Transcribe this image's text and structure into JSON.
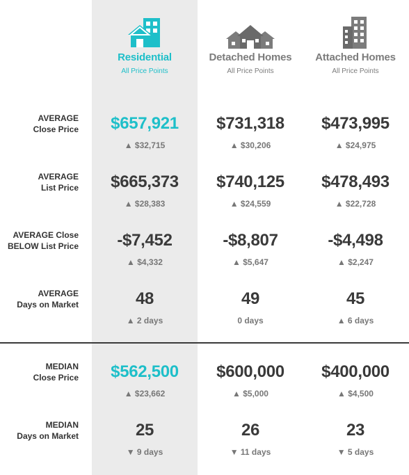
{
  "colors": {
    "accent": "#1ebfc9",
    "muted": "#7c7c7c",
    "text": "#3a3a3a"
  },
  "columns": [
    {
      "title": "Residential",
      "subtitle": "All Price Points",
      "icon": "residential-building-icon"
    },
    {
      "title": "Detached Homes",
      "subtitle": "All Price Points",
      "icon": "houses-icon"
    },
    {
      "title": "Attached Homes",
      "subtitle": "All Price Points",
      "icon": "apartment-building-icon"
    }
  ],
  "rows": [
    {
      "label1": "AVERAGE",
      "label2": "Close Price",
      "values": [
        "$657,921",
        "$731,318",
        "$473,995"
      ],
      "changes": [
        "▲ $32,715",
        "▲ $30,206",
        "▲ $24,975"
      ]
    },
    {
      "label1": "AVERAGE",
      "label2": "List Price",
      "values": [
        "$665,373",
        "$740,125",
        "$478,493"
      ],
      "changes": [
        "▲ $28,383",
        "▲ $24,559",
        "▲ $22,728"
      ]
    },
    {
      "label1": "AVERAGE Close",
      "label2": "BELOW List Price",
      "values": [
        "-$7,452",
        "-$8,807",
        "-$4,498"
      ],
      "changes": [
        "▲ $4,332",
        "▲ $5,647",
        "▲ $2,247"
      ]
    },
    {
      "label1": "AVERAGE",
      "label2": "Days on Market",
      "values": [
        "48",
        "49",
        "45"
      ],
      "changes": [
        "▲ 2 days",
        "0 days",
        "▲ 6 days"
      ]
    },
    {
      "label1": "MEDIAN",
      "label2": "Close Price",
      "values": [
        "$562,500",
        "$600,000",
        "$400,000"
      ],
      "changes": [
        "▲ $23,662",
        "▲ $5,000",
        "▲ $4,500"
      ]
    },
    {
      "label1": "MEDIAN",
      "label2": "Days on Market",
      "values": [
        "25",
        "26",
        "23"
      ],
      "changes": [
        "▼ 9 days",
        "▼ 11 days",
        "▼ 5 days"
      ]
    }
  ]
}
